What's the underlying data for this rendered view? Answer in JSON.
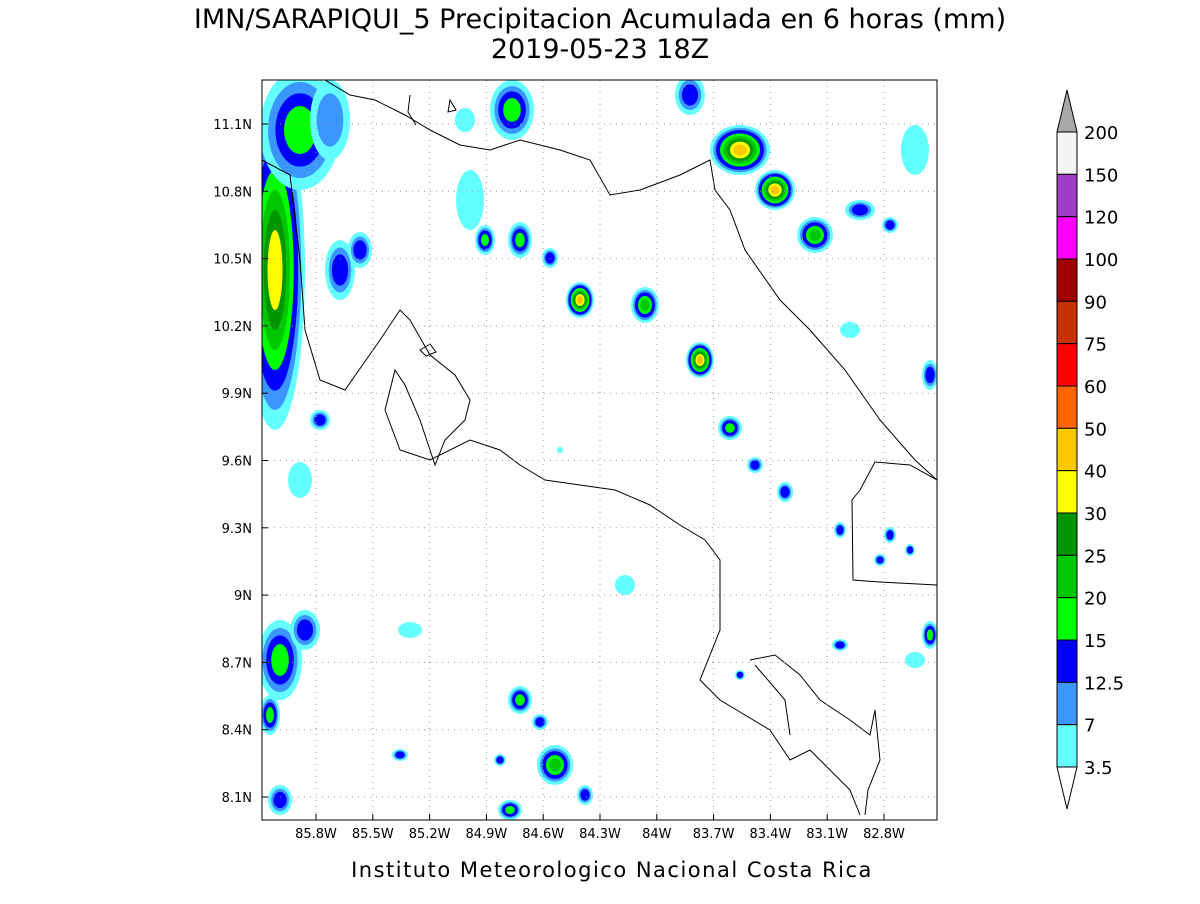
{
  "title": "IMN/SARAPIQUI_5 Precipitacion Acumulada en 6 horas (mm)",
  "subtitle": "2019-05-23 18Z",
  "footer": "Instituto Meteorologico Nacional Costa Rica",
  "map": {
    "lon_labels": [
      "85.8W",
      "85.5W",
      "85.2W",
      "84.9W",
      "84.6W",
      "84.3W",
      "84W",
      "83.7W",
      "83.4W",
      "83.1W",
      "82.8W"
    ],
    "lat_labels": [
      "11.1N",
      "10.8N",
      "10.5N",
      "10.2N",
      "9.9N",
      "9.6N",
      "9.3N",
      "9N",
      "8.7N",
      "8.4N",
      "8.1N"
    ]
  },
  "colorbar": {
    "levels": [
      200,
      150,
      120,
      100,
      90,
      75,
      60,
      50,
      40,
      30,
      25,
      20,
      15,
      12.5,
      7,
      3.5
    ],
    "colors": [
      "#f4f4f4",
      "#a03cc8",
      "#ff00ff",
      "#a00000",
      "#c83200",
      "#ff0000",
      "#ff6400",
      "#ffc800",
      "#ffff00",
      "#009600",
      "#00c800",
      "#00ff00",
      "#0000ff",
      "#3c96ff",
      "#64ffff"
    ],
    "over_color": "#a8a8a8",
    "under_color": "#ffffff"
  }
}
